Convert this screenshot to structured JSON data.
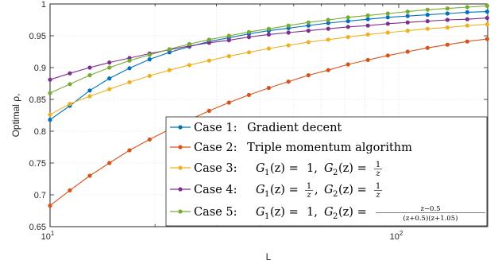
{
  "chart_data": {
    "type": "line",
    "xlabel": "L",
    "ylabel": "Optimal ρ,",
    "x_scale": "log",
    "xlim": [
      10,
      180
    ],
    "ylim": [
      0.65,
      1.0
    ],
    "grid": true,
    "legend_position": "bottom-right",
    "x_tick_labels": [
      {
        "base": "10",
        "exp": "1",
        "value": 10
      },
      {
        "base": "10",
        "exp": "2",
        "value": 100
      }
    ],
    "y_tick_labels": [
      "0.65",
      "0.7",
      "0.75",
      "0.8",
      "0.85",
      "0.9",
      "0.95",
      "1"
    ],
    "y_tick_values": [
      0.65,
      0.7,
      0.75,
      0.8,
      0.85,
      0.9,
      0.95,
      1.0
    ],
    "x": [
      10,
      11.4,
      13,
      14.8,
      16.9,
      19.3,
      22,
      25.1,
      28.6,
      32.6,
      37.2,
      42.4,
      48.3,
      55.1,
      62.8,
      71.6,
      81.6,
      93.1,
      106.1,
      121,
      138,
      157.3,
      179.4
    ],
    "series": [
      {
        "name": "Case 1:  Gradient decent",
        "color": "#0072BD",
        "values": [
          0.818,
          0.84,
          0.864,
          0.883,
          0.899,
          0.913,
          0.924,
          0.933,
          0.941,
          0.947,
          0.953,
          0.958,
          0.962,
          0.966,
          0.97,
          0.973,
          0.976,
          0.979,
          0.981,
          0.983,
          0.985,
          0.987,
          0.988
        ]
      },
      {
        "name": "Case 2:  Triple momentum algorithm",
        "color": "#D95319",
        "values": [
          0.683,
          0.707,
          0.73,
          0.75,
          0.77,
          0.787,
          0.803,
          0.818,
          0.832,
          0.845,
          0.857,
          0.868,
          0.878,
          0.888,
          0.896,
          0.905,
          0.912,
          0.919,
          0.925,
          0.931,
          0.936,
          0.941,
          0.945
        ]
      },
      {
        "name": "Case 3:  G1(z) = 1,  G2(z) = 1/z",
        "color": "#EDB120",
        "values": [
          0.826,
          0.843,
          0.855,
          0.866,
          0.877,
          0.887,
          0.896,
          0.904,
          0.911,
          0.918,
          0.924,
          0.93,
          0.935,
          0.94,
          0.944,
          0.948,
          0.952,
          0.955,
          0.958,
          0.961,
          0.963,
          0.966,
          0.968
        ]
      },
      {
        "name": "Case 4:  G1(z) = 1/z,  G2(z) = 1/z",
        "color": "#7E2F8E",
        "values": [
          0.881,
          0.891,
          0.9,
          0.908,
          0.915,
          0.922,
          0.928,
          0.934,
          0.939,
          0.943,
          0.948,
          0.952,
          0.955,
          0.958,
          0.961,
          0.964,
          0.966,
          0.969,
          0.971,
          0.973,
          0.975,
          0.976,
          0.978
        ]
      },
      {
        "name": "Case 5:  G1(z) = 1,  G2(z) = (z−0.5)/((z+0.5)(z+1.05))",
        "color": "#77AC30",
        "values": [
          0.86,
          0.874,
          0.888,
          0.9,
          0.911,
          0.92,
          0.929,
          0.937,
          0.944,
          0.95,
          0.956,
          0.961,
          0.966,
          0.971,
          0.975,
          0.979,
          0.982,
          0.985,
          0.988,
          0.991,
          0.993,
          0.995,
          0.997
        ]
      }
    ],
    "legend": [
      {
        "prefix": "Case 1:",
        "text": "Gradient decent"
      },
      {
        "prefix": "Case 2:",
        "text": "Triple momentum algorithm"
      },
      {
        "prefix": "Case 3:",
        "g1": "G",
        "g1sub": "1",
        "arg": "(z) = ",
        "g1val": "1,",
        "g2": "G",
        "g2sub": "2",
        "frac_num": "1",
        "frac_den": "z"
      },
      {
        "prefix": "Case 4:",
        "g1": "G",
        "g1sub": "1",
        "arg": "(z) = ",
        "g1num": "1",
        "g1den": "z",
        "g2": "G",
        "g2sub": "2",
        "frac_num": "1",
        "frac_den": "z"
      },
      {
        "prefix": "Case 5:",
        "g1": "G",
        "g1sub": "1",
        "arg": "(z) = ",
        "g1val": "1,",
        "g2": "G",
        "g2sub": "2",
        "frac_num": "z−0.5",
        "frac_den": "(z+0.5)(z+1.05)"
      }
    ]
  }
}
